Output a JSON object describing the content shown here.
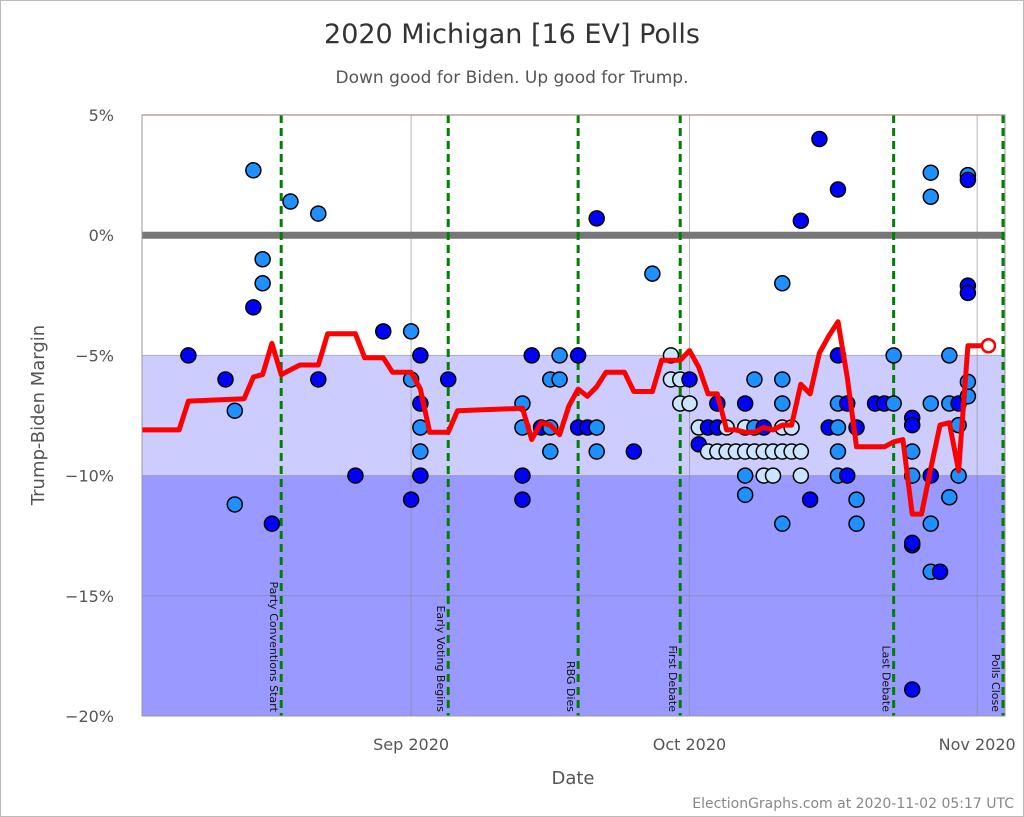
{
  "chart_data": {
    "type": "scatter",
    "title": "2020 Michigan [16 EV] Polls",
    "subtitle": "Down good for Biden. Up good for Trump.",
    "xlabel": "Date",
    "ylabel": "Trump-Biden Margin",
    "footer": "ElectionGraphs.com at 2020-11-02 05:17 UTC",
    "xlim": [
      "2020-08-03",
      "2020-11-04"
    ],
    "ylim": [
      -20,
      5
    ],
    "y_ticks": [
      {
        "v": 5,
        "label": "5%"
      },
      {
        "v": 0,
        "label": "0%"
      },
      {
        "v": -5,
        "label": "−5%"
      },
      {
        "v": -10,
        "label": "−10%"
      },
      {
        "v": -15,
        "label": "−15%"
      },
      {
        "v": -20,
        "label": "−20%"
      }
    ],
    "x_ticks": [
      {
        "date": "2020-09-01",
        "label": "Sep 2020"
      },
      {
        "date": "2020-10-01",
        "label": "Oct 2020"
      },
      {
        "date": "2020-11-01",
        "label": "Nov 2020"
      }
    ],
    "grid": true,
    "colors": {
      "band_lean": "#ccccff",
      "band_strong": "#9999ff",
      "zero_line": "#777777",
      "top_line": "#ffaaaa",
      "average": "#ff0000",
      "event": "#008000",
      "poll_dark": "#0000ff",
      "poll_mid": "#1e90ff",
      "poll_light": "#cce5ff"
    },
    "events": [
      {
        "date": "2020-08-18",
        "label": "Party Conventions Start"
      },
      {
        "date": "2020-09-05",
        "label": "Early Voting Begins"
      },
      {
        "date": "2020-09-19",
        "label": "RBG Dies"
      },
      {
        "date": "2020-09-30",
        "label": "First Debate"
      },
      {
        "date": "2020-10-23",
        "label": "Last Debate"
      },
      {
        "date": "2020-11-04",
        "label": "Polls Close"
      }
    ],
    "average": [
      [
        "2020-08-03",
        -8.1
      ],
      [
        "2020-08-07",
        -8.1
      ],
      [
        "2020-08-08",
        -6.9
      ],
      [
        "2020-08-14",
        -6.8
      ],
      [
        "2020-08-15",
        -5.9
      ],
      [
        "2020-08-16",
        -5.8
      ],
      [
        "2020-08-17",
        -4.5
      ],
      [
        "2020-08-18",
        -5.8
      ],
      [
        "2020-08-19",
        -5.6
      ],
      [
        "2020-08-20",
        -5.4
      ],
      [
        "2020-08-22",
        -5.4
      ],
      [
        "2020-08-23",
        -4.1
      ],
      [
        "2020-08-26",
        -4.1
      ],
      [
        "2020-08-27",
        -5.1
      ],
      [
        "2020-08-29",
        -5.1
      ],
      [
        "2020-08-30",
        -5.7
      ],
      [
        "2020-09-01",
        -5.7
      ],
      [
        "2020-09-02",
        -6.4
      ],
      [
        "2020-09-03",
        -8.2
      ],
      [
        "2020-09-05",
        -8.2
      ],
      [
        "2020-09-06",
        -7.3
      ],
      [
        "2020-09-13",
        -7.2
      ],
      [
        "2020-09-14",
        -8.5
      ],
      [
        "2020-09-15",
        -7.8
      ],
      [
        "2020-09-16",
        -7.9
      ],
      [
        "2020-09-17",
        -8.3
      ],
      [
        "2020-09-18",
        -7.1
      ],
      [
        "2020-09-19",
        -6.4
      ],
      [
        "2020-09-20",
        -6.7
      ],
      [
        "2020-09-21",
        -6.3
      ],
      [
        "2020-09-22",
        -5.7
      ],
      [
        "2020-09-24",
        -5.7
      ],
      [
        "2020-09-25",
        -6.5
      ],
      [
        "2020-09-27",
        -6.5
      ],
      [
        "2020-09-28",
        -5.2
      ],
      [
        "2020-09-30",
        -5.2
      ],
      [
        "2020-10-01",
        -4.8
      ],
      [
        "2020-10-02",
        -5.5
      ],
      [
        "2020-10-03",
        -6.6
      ],
      [
        "2020-10-04",
        -6.6
      ],
      [
        "2020-10-05",
        -8.1
      ],
      [
        "2020-10-06",
        -8.1
      ],
      [
        "2020-10-07",
        -8.2
      ],
      [
        "2020-10-08",
        -8.2
      ],
      [
        "2020-10-09",
        -8.0
      ],
      [
        "2020-10-10",
        -8.1
      ],
      [
        "2020-10-11",
        -7.9
      ],
      [
        "2020-10-12",
        -7.9
      ],
      [
        "2020-10-13",
        -6.2
      ],
      [
        "2020-10-14",
        -6.6
      ],
      [
        "2020-10-15",
        -4.9
      ],
      [
        "2020-10-16",
        -4.2
      ],
      [
        "2020-10-17",
        -3.6
      ],
      [
        "2020-10-18",
        -5.9
      ],
      [
        "2020-10-19",
        -8.8
      ],
      [
        "2020-10-22",
        -8.8
      ],
      [
        "2020-10-23",
        -8.6
      ],
      [
        "2020-10-24",
        -8.5
      ],
      [
        "2020-10-25",
        -11.6
      ],
      [
        "2020-10-26",
        -11.6
      ],
      [
        "2020-10-27",
        -9.7
      ],
      [
        "2020-10-28",
        -7.9
      ],
      [
        "2020-10-29",
        -7.8
      ],
      [
        "2020-10-30",
        -9.8
      ],
      [
        "2020-10-31",
        -4.6
      ],
      [
        "2020-11-02",
        -4.6
      ]
    ],
    "polls": [
      [
        "2020-08-08",
        -5,
        "dark"
      ],
      [
        "2020-08-12",
        -6,
        "dark"
      ],
      [
        "2020-08-13",
        -7.3,
        "mid"
      ],
      [
        "2020-08-13",
        -11.2,
        "mid"
      ],
      [
        "2020-08-15",
        2.7,
        "mid"
      ],
      [
        "2020-08-15",
        -3,
        "dark"
      ],
      [
        "2020-08-16",
        -1,
        "mid"
      ],
      [
        "2020-08-16",
        -2,
        "mid"
      ],
      [
        "2020-08-17",
        -12,
        "dark"
      ],
      [
        "2020-08-19",
        1.4,
        "mid"
      ],
      [
        "2020-08-22",
        0.9,
        "mid"
      ],
      [
        "2020-08-22",
        -6,
        "dark"
      ],
      [
        "2020-08-26",
        -10,
        "dark"
      ],
      [
        "2020-08-29",
        -4,
        "dark"
      ],
      [
        "2020-09-01",
        -4,
        "mid"
      ],
      [
        "2020-09-01",
        -6,
        "mid"
      ],
      [
        "2020-09-01",
        -11,
        "dark"
      ],
      [
        "2020-09-02",
        -5,
        "dark"
      ],
      [
        "2020-09-02",
        -7,
        "dark"
      ],
      [
        "2020-09-02",
        -8,
        "mid"
      ],
      [
        "2020-09-02",
        -9,
        "mid"
      ],
      [
        "2020-09-02",
        -10,
        "dark"
      ],
      [
        "2020-09-05",
        -6,
        "dark"
      ],
      [
        "2020-09-14",
        -5,
        "dark"
      ],
      [
        "2020-09-17",
        -5,
        "mid"
      ],
      [
        "2020-09-19",
        -5,
        "dark"
      ],
      [
        "2020-09-16",
        -6,
        "mid"
      ],
      [
        "2020-09-17",
        -6,
        "mid"
      ],
      [
        "2020-09-13",
        -7,
        "mid"
      ],
      [
        "2020-09-13",
        -8,
        "mid"
      ],
      [
        "2020-09-15",
        -8,
        "dark"
      ],
      [
        "2020-09-16",
        -8,
        "mid"
      ],
      [
        "2020-09-16",
        -9,
        "mid"
      ],
      [
        "2020-09-13",
        -10,
        "dark"
      ],
      [
        "2020-09-13",
        -11,
        "dark"
      ],
      [
        "2020-09-19",
        -8,
        "dark"
      ],
      [
        "2020-09-20",
        -8,
        "dark"
      ],
      [
        "2020-09-21",
        -8,
        "mid"
      ],
      [
        "2020-09-21",
        -9,
        "mid"
      ],
      [
        "2020-09-25",
        -9,
        "dark"
      ],
      [
        "2020-09-21",
        0.7,
        "dark"
      ],
      [
        "2020-09-27",
        -1.6,
        "mid"
      ],
      [
        "2020-09-29",
        -5,
        "light"
      ],
      [
        "2020-09-29",
        -6,
        "light"
      ],
      [
        "2020-09-30",
        -6,
        "light"
      ],
      [
        "2020-10-01",
        -6,
        "dark"
      ],
      [
        "2020-09-30",
        -7,
        "light"
      ],
      [
        "2020-10-01",
        -7,
        "light"
      ],
      [
        "2020-10-15",
        4,
        "dark"
      ],
      [
        "2020-10-17",
        1.9,
        "dark"
      ],
      [
        "2020-10-13",
        0.6,
        "dark"
      ],
      [
        "2020-10-11",
        -2,
        "mid"
      ],
      [
        "2020-10-08",
        -6,
        "mid"
      ],
      [
        "2020-10-11",
        -6,
        "mid"
      ],
      [
        "2020-10-17",
        -5,
        "dark"
      ],
      [
        "2020-10-04",
        -7,
        "dark"
      ],
      [
        "2020-10-07",
        -7,
        "dark"
      ],
      [
        "2020-10-11",
        -7,
        "mid"
      ],
      [
        "2020-10-17",
        -7,
        "mid"
      ],
      [
        "2020-10-18",
        -7,
        "dark"
      ],
      [
        "2020-10-21",
        -7,
        "dark"
      ],
      [
        "2020-10-02",
        -8,
        "light"
      ],
      [
        "2020-10-03",
        -8,
        "dark"
      ],
      [
        "2020-10-04",
        -8,
        "dark"
      ],
      [
        "2020-10-05",
        -8,
        "light"
      ],
      [
        "2020-10-07",
        -8,
        "light"
      ],
      [
        "2020-10-08",
        -8,
        "mid"
      ],
      [
        "2020-10-09",
        -8,
        "dark"
      ],
      [
        "2020-10-11",
        -8,
        "light"
      ],
      [
        "2020-10-12",
        -8,
        "light"
      ],
      [
        "2020-10-16",
        -8,
        "dark"
      ],
      [
        "2020-10-17",
        -8,
        "mid"
      ],
      [
        "2020-10-19",
        -8,
        "dark"
      ],
      [
        "2020-10-02",
        -8.7,
        "dark"
      ],
      [
        "2020-10-03",
        -9,
        "light"
      ],
      [
        "2020-10-04",
        -9,
        "light"
      ],
      [
        "2020-10-05",
        -9,
        "light"
      ],
      [
        "2020-10-06",
        -9,
        "light"
      ],
      [
        "2020-10-07",
        -9,
        "light"
      ],
      [
        "2020-10-08",
        -9,
        "light"
      ],
      [
        "2020-10-09",
        -9,
        "light"
      ],
      [
        "2020-10-10",
        -9,
        "light"
      ],
      [
        "2020-10-11",
        -9,
        "light"
      ],
      [
        "2020-10-12",
        -9,
        "light"
      ],
      [
        "2020-10-13",
        -9,
        "light"
      ],
      [
        "2020-10-17",
        -9,
        "mid"
      ],
      [
        "2020-10-07",
        -10,
        "mid"
      ],
      [
        "2020-10-09",
        -10,
        "light"
      ],
      [
        "2020-10-10",
        -10,
        "light"
      ],
      [
        "2020-10-13",
        -10,
        "light"
      ],
      [
        "2020-10-17",
        -10,
        "mid"
      ],
      [
        "2020-10-18",
        -10,
        "dark"
      ],
      [
        "2020-10-07",
        -10.8,
        "mid"
      ],
      [
        "2020-10-14",
        -11,
        "dark"
      ],
      [
        "2020-10-19",
        -11,
        "mid"
      ],
      [
        "2020-10-11",
        -12,
        "mid"
      ],
      [
        "2020-10-19",
        -12,
        "mid"
      ],
      [
        "2020-10-23",
        -5,
        "mid"
      ],
      [
        "2020-10-29",
        -5,
        "mid"
      ],
      [
        "2020-10-22",
        -7,
        "dark"
      ],
      [
        "2020-10-23",
        -7,
        "mid"
      ],
      [
        "2020-10-27",
        -7,
        "mid"
      ],
      [
        "2020-10-29",
        -7,
        "mid"
      ],
      [
        "2020-10-30",
        -7,
        "dark"
      ],
      [
        "2020-10-31",
        -6.7,
        "mid"
      ],
      [
        "2020-10-31",
        -6.1,
        "mid"
      ],
      [
        "2020-10-25",
        -7.6,
        "dark"
      ],
      [
        "2020-10-25",
        -7.9,
        "dark"
      ],
      [
        "2020-10-25",
        -9,
        "mid"
      ],
      [
        "2020-10-25",
        -10,
        "mid"
      ],
      [
        "2020-10-27",
        -10,
        "dark"
      ],
      [
        "2020-10-30",
        -10,
        "mid"
      ],
      [
        "2020-10-29",
        -10.9,
        "mid"
      ],
      [
        "2020-10-27",
        -12,
        "mid"
      ],
      [
        "2020-10-25",
        -12.9,
        "dark"
      ],
      [
        "2020-10-25",
        -12.8,
        "dark"
      ],
      [
        "2020-10-27",
        -14,
        "mid"
      ],
      [
        "2020-10-28",
        -14,
        "dark"
      ],
      [
        "2020-10-25",
        -18.9,
        "dark"
      ],
      [
        "2020-10-30",
        -7.9,
        "mid"
      ],
      [
        "2020-10-27",
        2.6,
        "mid"
      ],
      [
        "2020-10-31",
        2.5,
        "mid"
      ],
      [
        "2020-10-31",
        2.3,
        "dark"
      ],
      [
        "2020-10-27",
        1.6,
        "mid"
      ],
      [
        "2020-10-31",
        -2.1,
        "dark"
      ],
      [
        "2020-10-31",
        -2.4,
        "dark"
      ]
    ]
  }
}
